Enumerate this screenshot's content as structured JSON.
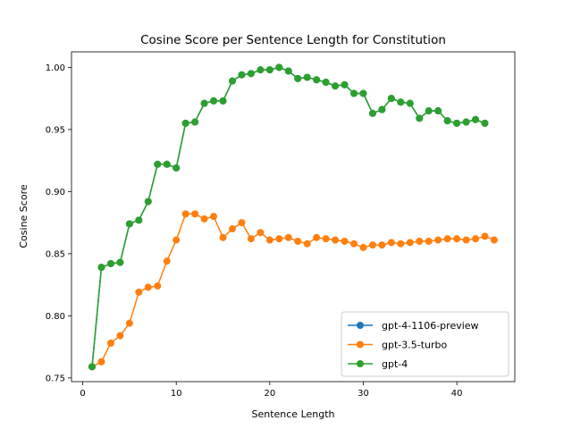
{
  "chart_data": {
    "type": "line",
    "title": "Cosine Score per Sentence Length for Constitution",
    "xlabel": "Sentence Length",
    "ylabel": "Cosine Score",
    "xlim": [
      -1.2,
      46.2
    ],
    "ylim": [
      0.747,
      1.0125
    ],
    "xticks": [
      0,
      10,
      20,
      30,
      40
    ],
    "yticks": [
      0.75,
      0.8,
      0.85,
      0.9,
      0.95,
      1.0
    ],
    "ytick_labels": [
      "0.75",
      "0.80",
      "0.85",
      "0.90",
      "0.95",
      "1.00"
    ],
    "grid": false,
    "legend_position": "lower-right",
    "series": [
      {
        "name": "gpt-4-1106-preview",
        "color": "#1f77b4",
        "x": [
          1,
          2,
          3,
          4,
          5,
          6,
          7,
          8,
          9,
          10,
          11,
          12,
          13,
          14,
          15,
          16,
          17,
          18,
          19,
          20,
          21,
          22,
          23,
          24,
          25,
          26,
          27,
          28,
          29,
          30,
          31,
          32,
          33,
          34,
          35,
          36,
          37,
          38,
          39,
          40,
          41,
          42,
          43
        ],
        "y": [
          0.759,
          0.839,
          0.842,
          0.843,
          0.874,
          0.877,
          0.892,
          0.922,
          0.922,
          0.919,
          0.955,
          0.956,
          0.971,
          0.973,
          0.973,
          0.989,
          0.994,
          0.995,
          0.998,
          0.998,
          1.0,
          0.997,
          0.991,
          0.992,
          0.99,
          0.988,
          0.985,
          0.986,
          0.979,
          0.979,
          0.963,
          0.966,
          0.975,
          0.972,
          0.971,
          0.959,
          0.965,
          0.965,
          0.957,
          0.955,
          0.956,
          0.958,
          0.955
        ]
      },
      {
        "name": "gpt-3.5-turbo",
        "color": "#ff7f0e",
        "x": [
          1,
          2,
          3,
          4,
          5,
          6,
          7,
          8,
          9,
          10,
          11,
          12,
          13,
          14,
          15,
          16,
          17,
          18,
          19,
          20,
          21,
          22,
          23,
          24,
          25,
          26,
          27,
          28,
          29,
          30,
          31,
          32,
          33,
          34,
          35,
          36,
          37,
          38,
          39,
          40,
          41,
          42,
          43,
          44
        ],
        "y": [
          0.759,
          0.763,
          0.778,
          0.784,
          0.794,
          0.819,
          0.823,
          0.824,
          0.844,
          0.861,
          0.882,
          0.882,
          0.878,
          0.88,
          0.863,
          0.87,
          0.875,
          0.862,
          0.867,
          0.861,
          0.862,
          0.863,
          0.86,
          0.858,
          0.863,
          0.862,
          0.861,
          0.86,
          0.858,
          0.855,
          0.857,
          0.857,
          0.859,
          0.858,
          0.859,
          0.86,
          0.86,
          0.861,
          0.862,
          0.862,
          0.861,
          0.862,
          0.864,
          0.861
        ]
      },
      {
        "name": "gpt-4",
        "color": "#2ca02c",
        "x": [
          1,
          2,
          3,
          4,
          5,
          6,
          7,
          8,
          9,
          10,
          11,
          12,
          13,
          14,
          15,
          16,
          17,
          18,
          19,
          20,
          21,
          22,
          23,
          24,
          25,
          26,
          27,
          28,
          29,
          30,
          31,
          32,
          33,
          34,
          35,
          36,
          37,
          38,
          39,
          40,
          41,
          42,
          43
        ],
        "y": [
          0.759,
          0.839,
          0.842,
          0.843,
          0.874,
          0.877,
          0.892,
          0.922,
          0.922,
          0.919,
          0.955,
          0.956,
          0.971,
          0.973,
          0.973,
          0.989,
          0.994,
          0.995,
          0.998,
          0.998,
          1.0,
          0.997,
          0.991,
          0.992,
          0.99,
          0.988,
          0.985,
          0.986,
          0.979,
          0.979,
          0.963,
          0.966,
          0.975,
          0.972,
          0.971,
          0.959,
          0.965,
          0.965,
          0.957,
          0.955,
          0.956,
          0.958,
          0.955
        ]
      }
    ]
  }
}
